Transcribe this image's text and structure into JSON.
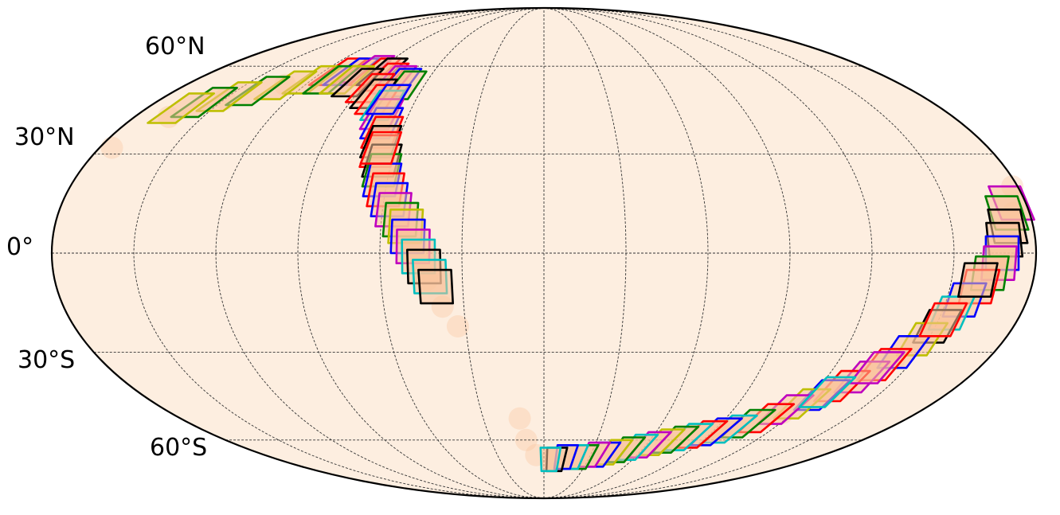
{
  "map": {
    "projection": "mollweide",
    "background_color": "#fdeee0",
    "outline_color": "#000000",
    "grid_color": "#333333",
    "lat_labels": [
      "60°N",
      "30°N",
      "0°",
      "30°S",
      "60°S"
    ],
    "gridlines": {
      "parallels_deg": [
        -60,
        -30,
        0,
        30,
        60
      ],
      "meridians_deg": [
        -150,
        -120,
        -90,
        -60,
        -30,
        0,
        30,
        60,
        90,
        120,
        150
      ]
    },
    "coverage_color": "#f9c29b",
    "tile_colors": [
      "#0000ff",
      "#008000",
      "#ff0000",
      "#00bfbf",
      "#bf00bf",
      "#bfbf00",
      "#000000"
    ],
    "tiles_lonlat": [
      [
        -112,
        58,
        2
      ],
      [
        -105,
        58,
        0
      ],
      [
        -98,
        59,
        4
      ],
      [
        -92,
        58,
        2
      ],
      [
        -88,
        58,
        6
      ],
      [
        -84,
        56,
        2
      ],
      [
        -78,
        55,
        4
      ],
      [
        -74,
        54,
        0
      ],
      [
        -70,
        53,
        1
      ],
      [
        -120,
        55,
        5
      ],
      [
        -130,
        53,
        5
      ],
      [
        -140,
        51,
        1
      ],
      [
        -150,
        49,
        5
      ],
      [
        -158,
        47,
        1
      ],
      [
        -165,
        45,
        5
      ],
      [
        -110,
        55,
        1
      ],
      [
        -102,
        55,
        5
      ],
      [
        -95,
        54,
        6
      ],
      [
        -86,
        52,
        2
      ],
      [
        -82,
        50,
        6
      ],
      [
        -78,
        48,
        2
      ],
      [
        -74,
        46,
        3
      ],
      [
        -72,
        43,
        4
      ],
      [
        -70,
        40,
        0
      ],
      [
        -68,
        37,
        2
      ],
      [
        -67,
        34,
        6
      ],
      [
        -66,
        31,
        2
      ],
      [
        -64,
        28,
        6
      ],
      [
        -63,
        25,
        1
      ],
      [
        -62,
        22,
        0
      ],
      [
        -60,
        19,
        2
      ],
      [
        -58,
        16,
        0
      ],
      [
        -56,
        13,
        4
      ],
      [
        -53,
        10,
        1
      ],
      [
        -51,
        8,
        5
      ],
      [
        -50,
        5,
        0
      ],
      [
        -48,
        2,
        4
      ],
      [
        -46,
        -1,
        3
      ],
      [
        -44,
        -4,
        6
      ],
      [
        -42,
        -7,
        3
      ],
      [
        -40,
        -10,
        6
      ],
      [
        -73,
        48,
        0
      ],
      [
        -66,
        32,
        2
      ],
      [
        175,
        15,
        4
      ],
      [
        172,
        12,
        1
      ],
      [
        171,
        8,
        6
      ],
      [
        169,
        4,
        6
      ],
      [
        168,
        0,
        0
      ],
      [
        167,
        -3,
        4
      ],
      [
        164,
        -6,
        1
      ],
      [
        161,
        -10,
        2
      ],
      [
        157,
        -14,
        0
      ],
      [
        154,
        -18,
        3
      ],
      [
        151,
        -22,
        6
      ],
      [
        148,
        -26,
        5
      ],
      [
        144,
        -30,
        0
      ],
      [
        140,
        -34,
        2
      ],
      [
        135,
        -38,
        4
      ],
      [
        130,
        -41,
        2
      ],
      [
        125,
        -44,
        0
      ],
      [
        120,
        -47,
        5
      ],
      [
        115,
        -49,
        4
      ],
      [
        110,
        -52,
        2
      ],
      [
        104,
        -54,
        1
      ],
      [
        98,
        -56,
        3
      ],
      [
        92,
        -57,
        0
      ],
      [
        86,
        -58,
        2
      ],
      [
        80,
        -59,
        3
      ],
      [
        74,
        -60,
        1
      ],
      [
        68,
        -61,
        5
      ],
      [
        62,
        -62,
        4
      ],
      [
        56,
        -63,
        3
      ],
      [
        50,
        -64,
        1
      ],
      [
        44,
        -65,
        5
      ],
      [
        38,
        -66,
        0
      ],
      [
        32,
        -66,
        4
      ],
      [
        26,
        -67,
        1
      ],
      [
        20,
        -67,
        3
      ],
      [
        14,
        -67,
        0
      ],
      [
        8,
        -68,
        6
      ],
      [
        4,
        -68,
        3
      ],
      [
        160,
        -8,
        6
      ],
      [
        152,
        -20,
        2
      ],
      [
        138,
        -35,
        4
      ],
      [
        126,
        -43,
        3
      ]
    ],
    "coverage_band_lonlat": [
      [
        -175,
        32
      ],
      [
        -165,
        42
      ],
      [
        -150,
        48
      ],
      [
        -130,
        53
      ],
      [
        -110,
        56
      ],
      [
        -95,
        57
      ],
      [
        -85,
        55
      ],
      [
        -78,
        50
      ],
      [
        -72,
        44
      ],
      [
        -68,
        37
      ],
      [
        -65,
        30
      ],
      [
        -62,
        22
      ],
      [
        -58,
        15
      ],
      [
        -53,
        8
      ],
      [
        -48,
        0
      ],
      [
        -43,
        -8
      ],
      [
        -38,
        -16
      ],
      [
        -33,
        -22
      ],
      [
        178,
        20
      ],
      [
        174,
        12
      ],
      [
        170,
        4
      ],
      [
        166,
        -4
      ],
      [
        160,
        -12
      ],
      [
        152,
        -22
      ],
      [
        142,
        -32
      ],
      [
        130,
        -42
      ],
      [
        115,
        -50
      ],
      [
        95,
        -57
      ],
      [
        70,
        -61
      ],
      [
        45,
        -65
      ],
      [
        20,
        -67
      ],
      [
        5,
        -68
      ],
      [
        -5,
        -66
      ],
      [
        -10,
        -60
      ],
      [
        -12,
        -52
      ]
    ]
  }
}
